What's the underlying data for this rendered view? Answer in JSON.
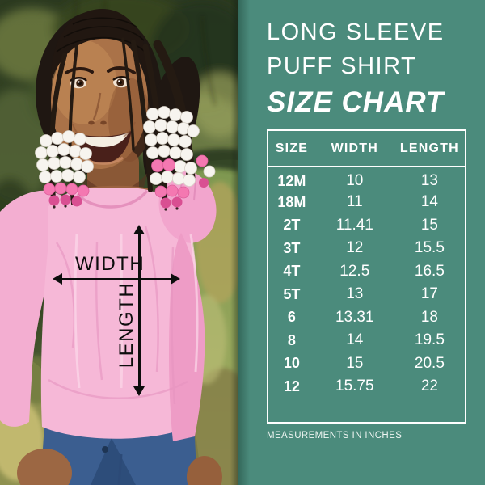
{
  "photo": {
    "width_label": "WIDTH",
    "length_label": "LENGTH"
  },
  "panel": {
    "title_line1": "LONG SLEEVE",
    "title_line2": "PUFF SHIRT",
    "title_line3": "SIZE CHART",
    "footnote": "MEASUREMENTS IN INCHES"
  },
  "size_table": {
    "headers": [
      "SIZE",
      "WIDTH",
      "LENGTH"
    ],
    "rows": [
      {
        "size": "12M",
        "width": "10",
        "length": "13"
      },
      {
        "size": "18M",
        "width": "11",
        "length": "14"
      },
      {
        "size": "2T",
        "width": "11.41",
        "length": "15"
      },
      {
        "size": "3T",
        "width": "12",
        "length": "15.5"
      },
      {
        "size": "4T",
        "width": "12.5",
        "length": "16.5"
      },
      {
        "size": "5T",
        "width": "13",
        "length": "17"
      },
      {
        "size": "6",
        "width": "13.31",
        "length": "18"
      },
      {
        "size": "8",
        "width": "14",
        "length": "19.5"
      },
      {
        "size": "10",
        "width": "15",
        "length": "20.5"
      },
      {
        "size": "12",
        "width": "15.75",
        "length": "22"
      }
    ]
  },
  "colors": {
    "panel_background": "#4b8b7c",
    "panel_text": "#ffffff",
    "table_border": "#ffffff",
    "arrow": "#0d0d0d",
    "shirt_pink": "#f6b8d7"
  },
  "chart_data": {
    "type": "table",
    "title": "LONG SLEEVE PUFF SHIRT SIZE CHART",
    "columns": [
      "SIZE",
      "WIDTH",
      "LENGTH"
    ],
    "rows": [
      [
        "12M",
        10,
        13
      ],
      [
        "18M",
        11,
        14
      ],
      [
        "2T",
        11.41,
        15
      ],
      [
        "3T",
        12,
        15.5
      ],
      [
        "4T",
        12.5,
        16.5
      ],
      [
        "5T",
        13,
        17
      ],
      [
        "6",
        13.31,
        18
      ],
      [
        "8",
        14,
        19.5
      ],
      [
        "10",
        15,
        20.5
      ],
      [
        "12",
        15.75,
        22
      ]
    ],
    "units": "inches",
    "footnote": "MEASUREMENTS IN INCHES"
  }
}
